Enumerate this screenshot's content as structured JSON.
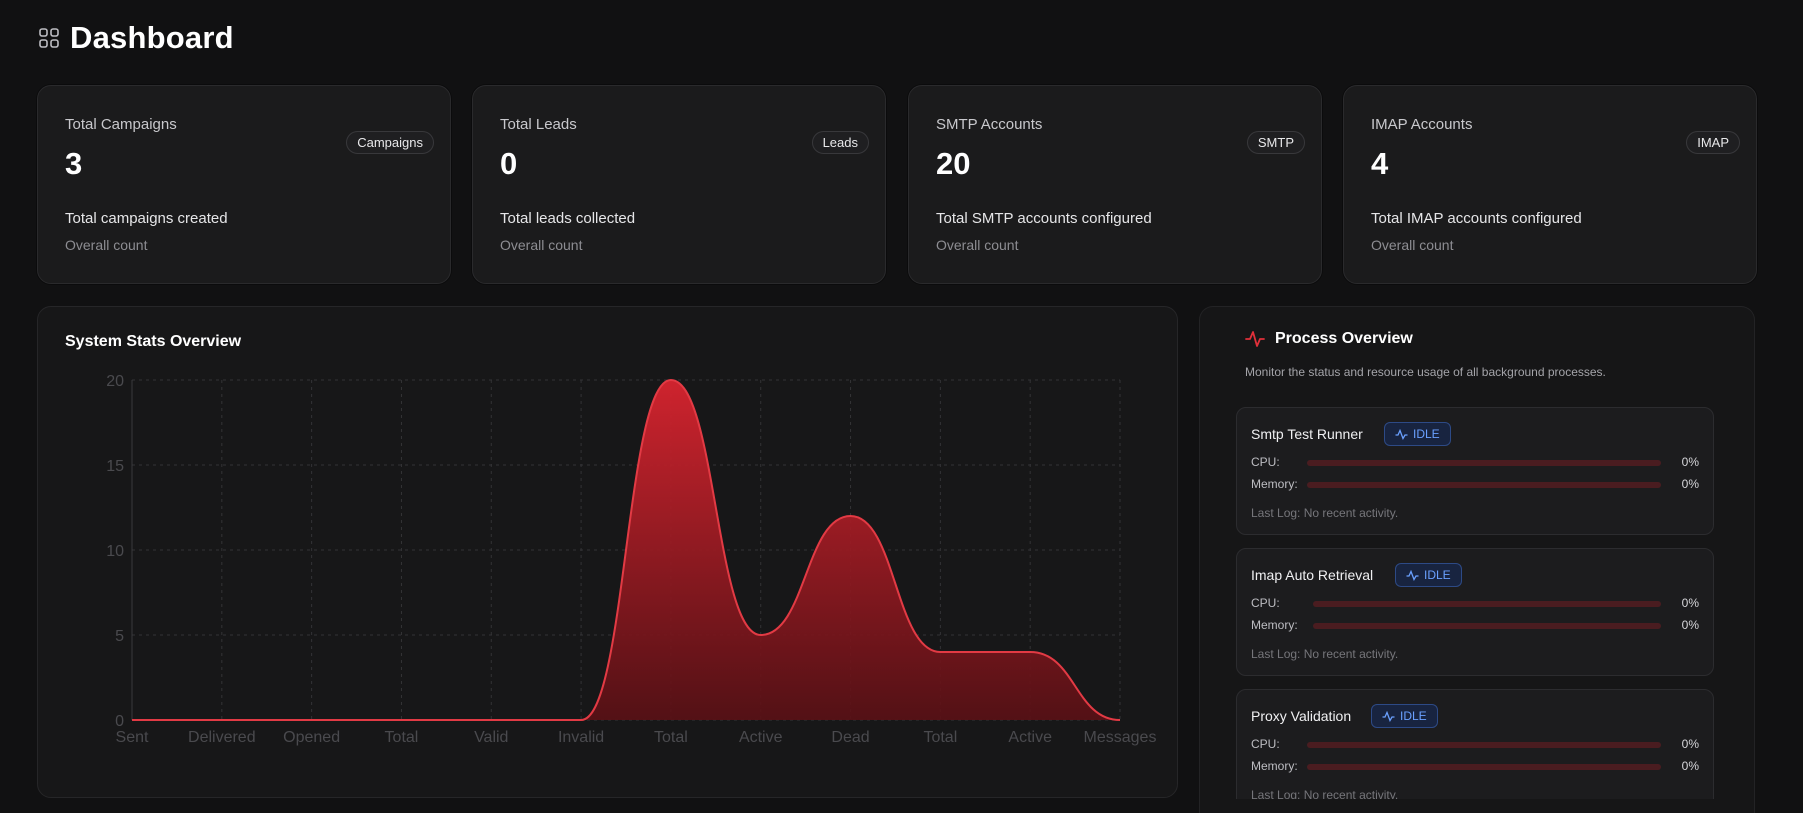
{
  "header": {
    "title": "Dashboard",
    "icon": "grid-icon"
  },
  "cards": [
    {
      "title": "Total Campaigns",
      "value": "3",
      "badge": "Campaigns",
      "description": "Total campaigns created",
      "subtext": "Overall count"
    },
    {
      "title": "Total Leads",
      "value": "0",
      "badge": "Leads",
      "description": "Total leads collected",
      "subtext": "Overall count"
    },
    {
      "title": "SMTP Accounts",
      "value": "20",
      "badge": "SMTP",
      "description": "Total SMTP accounts configured",
      "subtext": "Overall count"
    },
    {
      "title": "IMAP Accounts",
      "value": "4",
      "badge": "IMAP",
      "description": "Total IMAP accounts configured",
      "subtext": "Overall count"
    }
  ],
  "system_stats": {
    "title": "System Stats Overview",
    "chart_data": {
      "type": "area",
      "categories": [
        "Sent",
        "Delivered",
        "Opened",
        "Total",
        "Valid",
        "Invalid",
        "Total",
        "Active",
        "Dead",
        "Total",
        "Active",
        "Messages"
      ],
      "values": [
        0,
        0,
        0,
        0,
        0,
        0,
        20,
        5,
        12,
        4,
        4,
        0
      ],
      "title": "System Stats Overview",
      "xlabel": "",
      "ylabel": "",
      "ylim": [
        0,
        20
      ],
      "yticks": [
        0,
        5,
        10,
        15,
        20
      ],
      "grid": true,
      "legend": "none",
      "fill_color": "#c9222e"
    }
  },
  "process_overview": {
    "title": "Process Overview",
    "icon": "activity-icon",
    "description": "Monitor the status and resource usage of all background processes.",
    "cpu_label": "CPU:",
    "memory_label": "Memory:",
    "processes": [
      {
        "name": "Smtp Test Runner",
        "status": "IDLE",
        "cpu": "0%",
        "memory": "0%",
        "cpu_fraction": 0,
        "memory_fraction": 0,
        "last_log": "Last Log: No recent activity."
      },
      {
        "name": "Imap Auto Retrieval",
        "status": "IDLE",
        "cpu": "0%",
        "memory": "0%",
        "cpu_fraction": 0,
        "memory_fraction": 0,
        "last_log": "Last Log: No recent activity."
      },
      {
        "name": "Proxy Validation",
        "status": "IDLE",
        "cpu": "0%",
        "memory": "0%",
        "cpu_fraction": 0,
        "memory_fraction": 0,
        "last_log": "Last Log: No recent activity."
      }
    ]
  },
  "colors": {
    "accent": "#e0303a",
    "status_idle": "#6aa0ff"
  }
}
